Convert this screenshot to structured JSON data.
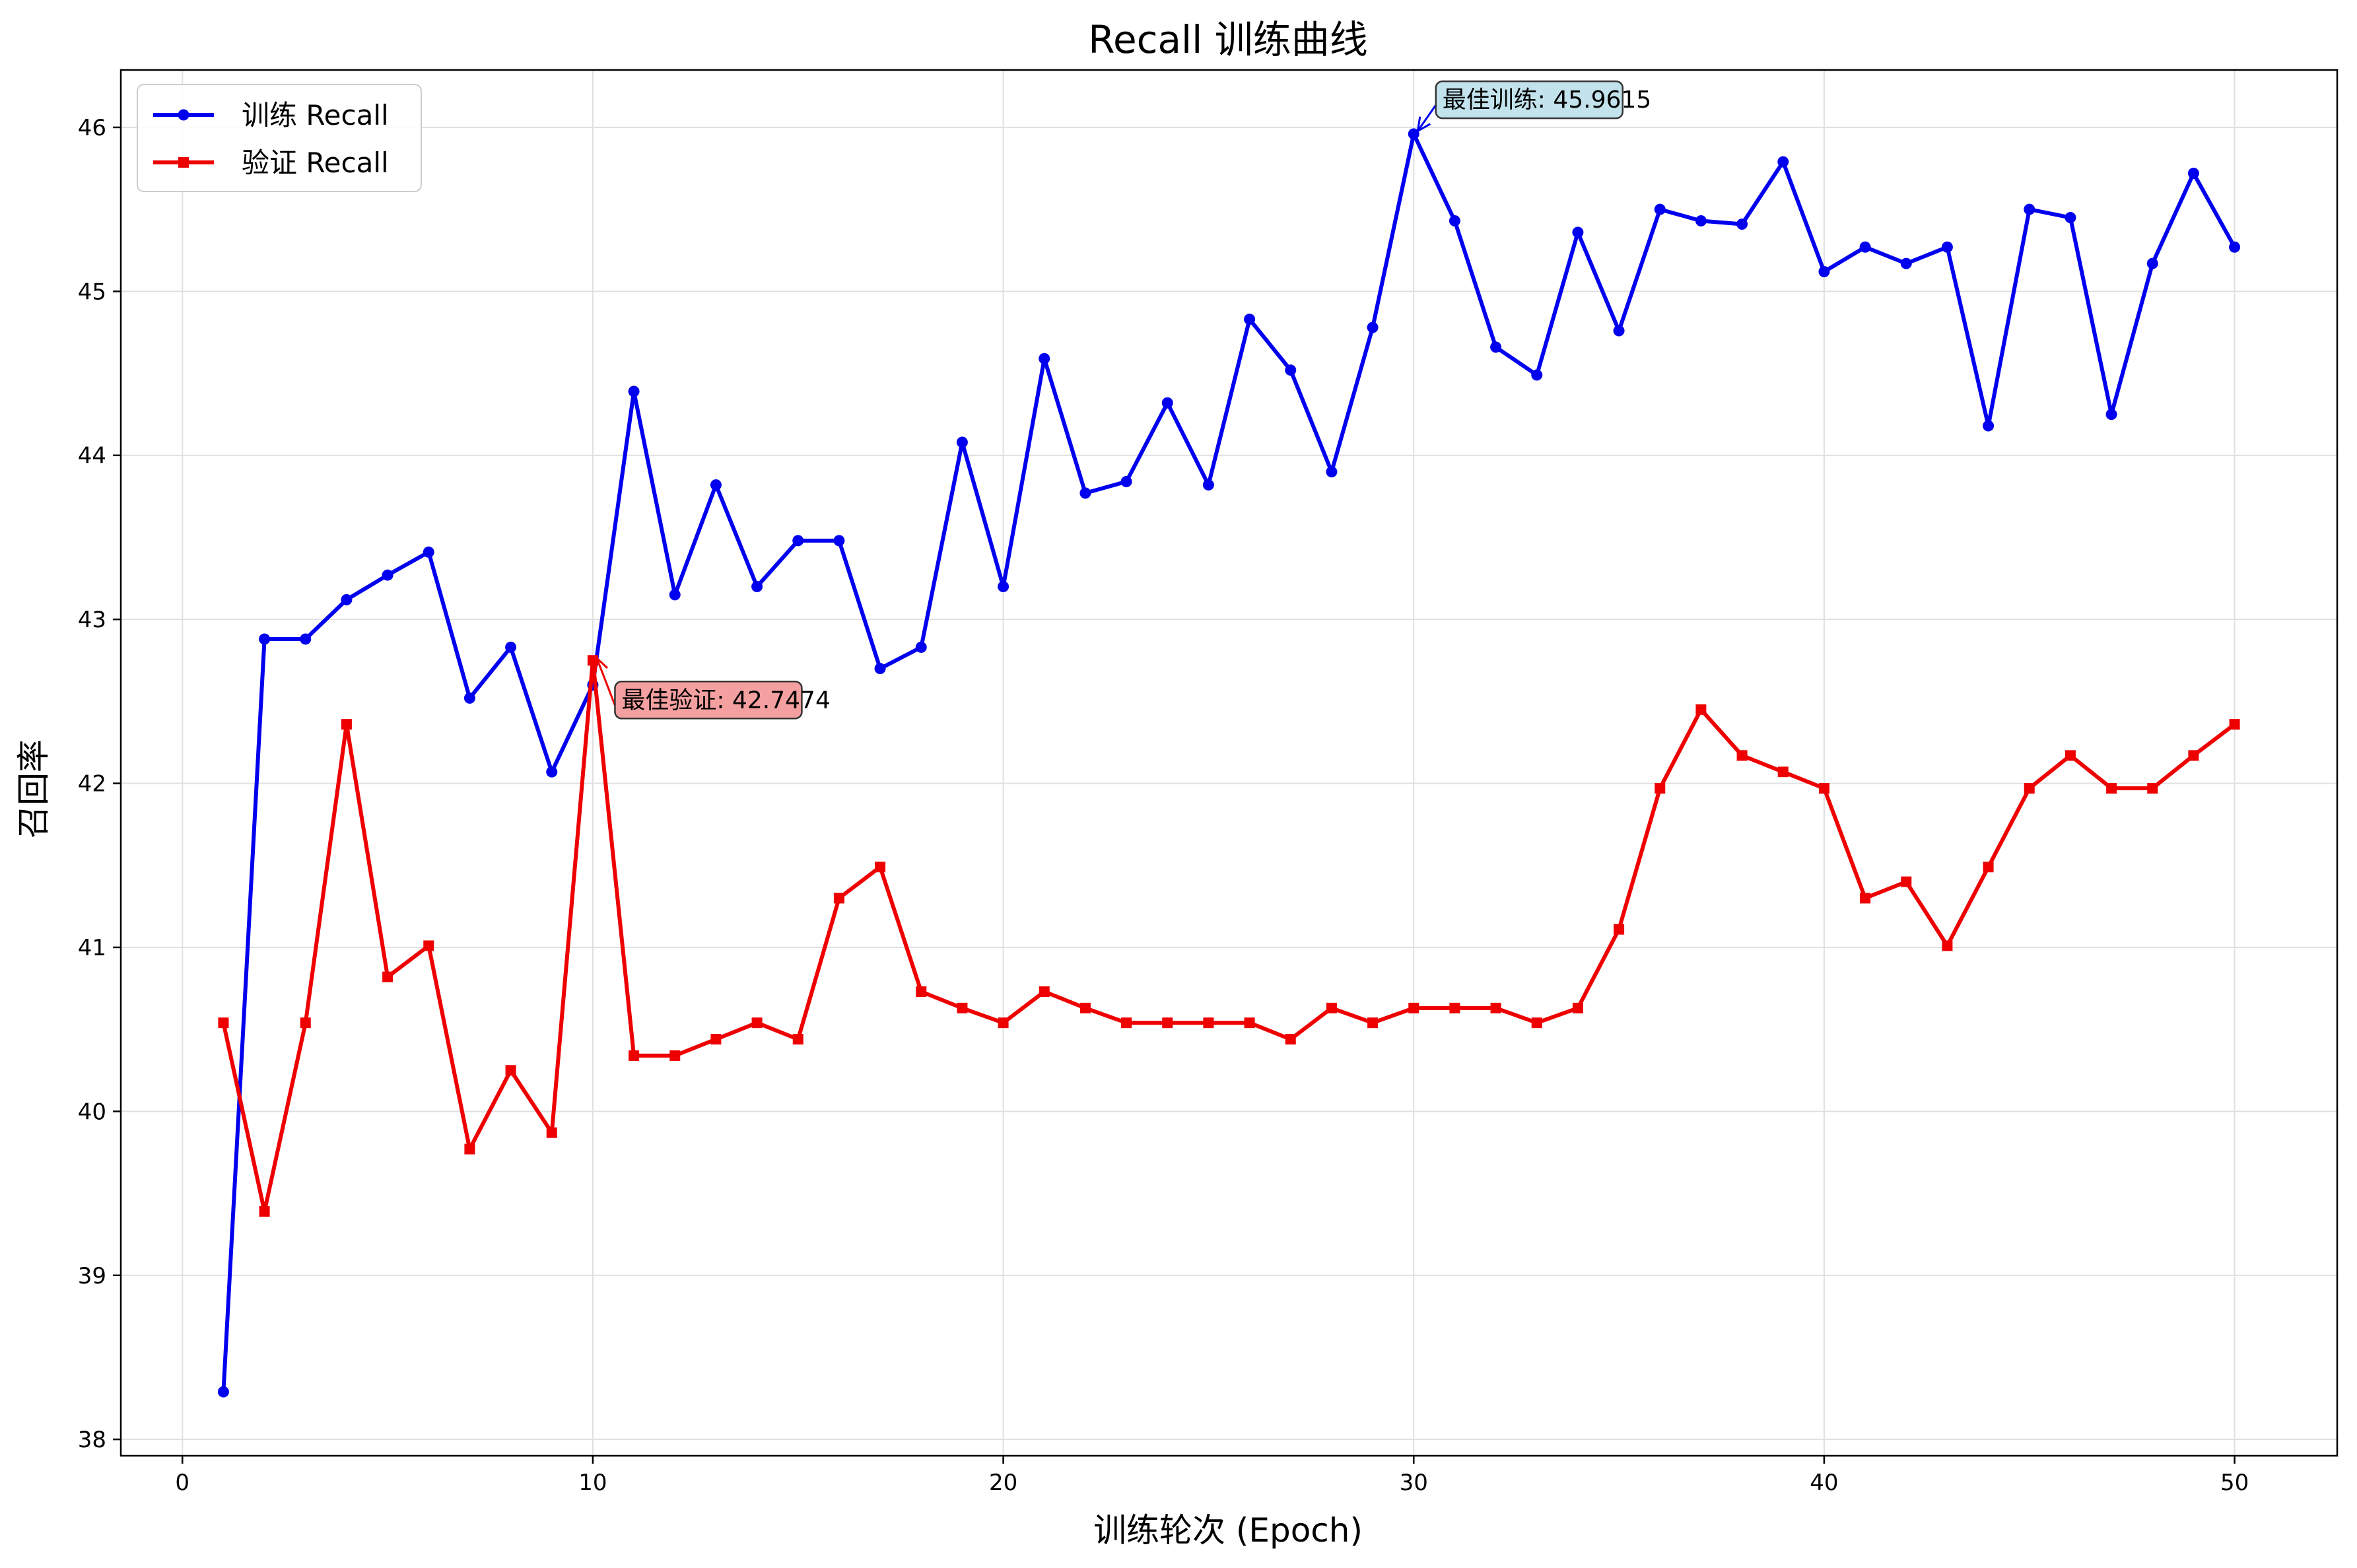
{
  "chart_data": {
    "type": "line",
    "title": "Recall 训练曲线",
    "xlabel": "训练轮次 (Epoch)",
    "ylabel": "召回率",
    "xlim": [
      -1.5,
      52.5
    ],
    "ylim": [
      37.9,
      46.35
    ],
    "xticks": [
      0,
      10,
      20,
      30,
      40,
      50
    ],
    "yticks": [
      38,
      39,
      40,
      41,
      42,
      43,
      44,
      45,
      46
    ],
    "grid": true,
    "legend_position": "top-left",
    "x": [
      1,
      2,
      3,
      4,
      5,
      6,
      7,
      8,
      9,
      10,
      11,
      12,
      13,
      14,
      15,
      16,
      17,
      18,
      19,
      20,
      21,
      22,
      23,
      24,
      25,
      26,
      27,
      28,
      29,
      30,
      31,
      32,
      33,
      34,
      35,
      36,
      37,
      38,
      39,
      40,
      41,
      42,
      43,
      44,
      45,
      46,
      47,
      48,
      49,
      50
    ],
    "series": [
      {
        "name": "训练 Recall",
        "color": "#0000ee",
        "marker": "circle",
        "values": [
          38.29,
          42.88,
          42.88,
          43.12,
          43.27,
          43.41,
          42.52,
          42.83,
          42.07,
          42.6,
          44.39,
          43.15,
          43.82,
          43.2,
          43.48,
          43.48,
          42.7,
          42.83,
          44.08,
          43.2,
          44.59,
          43.77,
          43.84,
          44.32,
          43.82,
          44.83,
          44.52,
          43.9,
          44.78,
          45.96,
          45.43,
          44.66,
          44.49,
          45.36,
          44.76,
          45.5,
          45.43,
          45.41,
          45.79,
          45.12,
          45.27,
          45.17,
          45.27,
          44.18,
          45.5,
          45.45,
          44.25,
          45.17,
          45.72,
          45.27
        ]
      },
      {
        "name": "验证 Recall",
        "color": "#ee0000",
        "marker": "square",
        "values": [
          40.54,
          39.39,
          40.54,
          42.36,
          40.82,
          41.01,
          39.77,
          40.25,
          39.87,
          42.75,
          40.34,
          40.34,
          40.44,
          40.54,
          40.44,
          41.3,
          41.49,
          40.73,
          40.63,
          40.54,
          40.73,
          40.63,
          40.54,
          40.54,
          40.54,
          40.54,
          40.44,
          40.63,
          40.54,
          40.63,
          40.63,
          40.63,
          40.54,
          40.63,
          41.11,
          41.97,
          42.45,
          42.17,
          42.07,
          41.97,
          41.3,
          41.4,
          41.01,
          41.49,
          41.97,
          42.17,
          41.97,
          41.97,
          42.17,
          42.36
        ]
      }
    ],
    "annotations": [
      {
        "text": "最佳训练: 45.9615",
        "point": [
          30,
          45.9615
        ],
        "text_pos": [
          30.7,
          46.12
        ],
        "color": "#0000ee",
        "box_color": "#add8e6"
      },
      {
        "text": "最佳验证: 42.7474",
        "point": [
          10,
          42.7474
        ],
        "text_pos": [
          10.7,
          42.46
        ],
        "color": "#ee0000",
        "box_color": "#f08080"
      }
    ]
  }
}
